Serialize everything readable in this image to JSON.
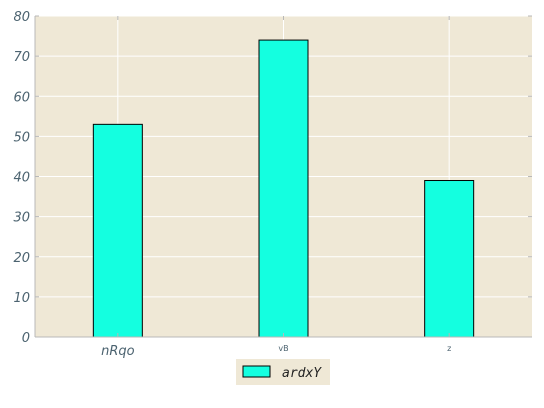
{
  "chart_data": {
    "type": "bar",
    "categories": [
      "nRqo",
      "vB",
      "z"
    ],
    "series": [
      {
        "name": "ardxY",
        "values": [
          53,
          74,
          39
        ]
      }
    ],
    "title": "",
    "xlabel": "",
    "ylabel": "",
    "ylim": [
      0,
      80
    ],
    "yticks": [
      0,
      10,
      20,
      30,
      40,
      50,
      60,
      70,
      80
    ],
    "grid": true,
    "legend_position": "bottom-center",
    "colors": {
      "bar_fill": "#14ffe0",
      "bar_edge": "#000000",
      "plot_background": "#efe8d6",
      "grid": "#ffffff",
      "axis": "#b8b8b8"
    }
  }
}
